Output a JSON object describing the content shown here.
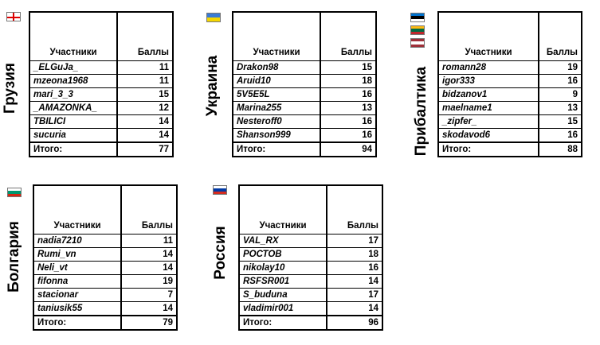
{
  "columns": {
    "participants": "Участники",
    "points": "Баллы",
    "total_label": "Итого:"
  },
  "groups": [
    {
      "name": "Грузия",
      "flag_colors": [
        "#ffffff",
        "#dd0000"
      ],
      "rows": [
        {
          "player": "_ELGuJa_",
          "score": "11"
        },
        {
          "player": "mzeona1968",
          "score": "11"
        },
        {
          "player": "mari_3_3",
          "score": "15"
        },
        {
          "player": "_AMAZONKA_",
          "score": "12"
        },
        {
          "player": "TBILICI",
          "score": "14"
        },
        {
          "player": "sucuria",
          "score": "14"
        }
      ],
      "total": "77"
    },
    {
      "name": "Украина",
      "flag_colors": [
        "#3a7bd5",
        "#f5d600"
      ],
      "rows": [
        {
          "player": "Drakon98",
          "score": "15"
        },
        {
          "player": "Aruid10",
          "score": "18"
        },
        {
          "player": "5V5E5L",
          "score": "16"
        },
        {
          "player": "Marina255",
          "score": "13"
        },
        {
          "player": "Nesteroff0",
          "score": "16"
        },
        {
          "player": "Shanson999",
          "score": "16"
        }
      ],
      "total": "94"
    },
    {
      "name": "Прибалтика",
      "flag_colors": [
        "#0072ce",
        "#fdb913",
        "#9e3039"
      ],
      "rows": [
        {
          "player": "romann28",
          "score": "19"
        },
        {
          "player": "igor333",
          "score": "16"
        },
        {
          "player": "bidzanov1",
          "score": "9"
        },
        {
          "player": "maelname1",
          "score": "13"
        },
        {
          "player": "_zipfer_",
          "score": "15"
        },
        {
          "player": "skodavod6",
          "score": "16"
        }
      ],
      "total": "88"
    },
    {
      "name": "Болгария",
      "flag_colors": [
        "#ffffff",
        "#00966e",
        "#d62612"
      ],
      "rows": [
        {
          "player": "nadia7210",
          "score": "11"
        },
        {
          "player": "Rumi_vn",
          "score": "14"
        },
        {
          "player": "Neli_vt",
          "score": "14"
        },
        {
          "player": "fifonna",
          "score": "19"
        },
        {
          "player": "stacionar",
          "score": "7"
        },
        {
          "player": "taniusik55",
          "score": "14"
        }
      ],
      "total": "79"
    },
    {
      "name": "Россия",
      "flag_colors": [
        "#ffffff",
        "#0039a6",
        "#d52b1e"
      ],
      "rows": [
        {
          "player": "VAL_RX",
          "score": "17"
        },
        {
          "player": "РОСТОВ",
          "score": "18"
        },
        {
          "player": "nikolay10",
          "score": "16"
        },
        {
          "player": "RSFSR001",
          "score": "14"
        },
        {
          "player": "S_buduna",
          "score": "17"
        },
        {
          "player": "vladimir001",
          "score": "14"
        }
      ],
      "total": "96"
    }
  ]
}
